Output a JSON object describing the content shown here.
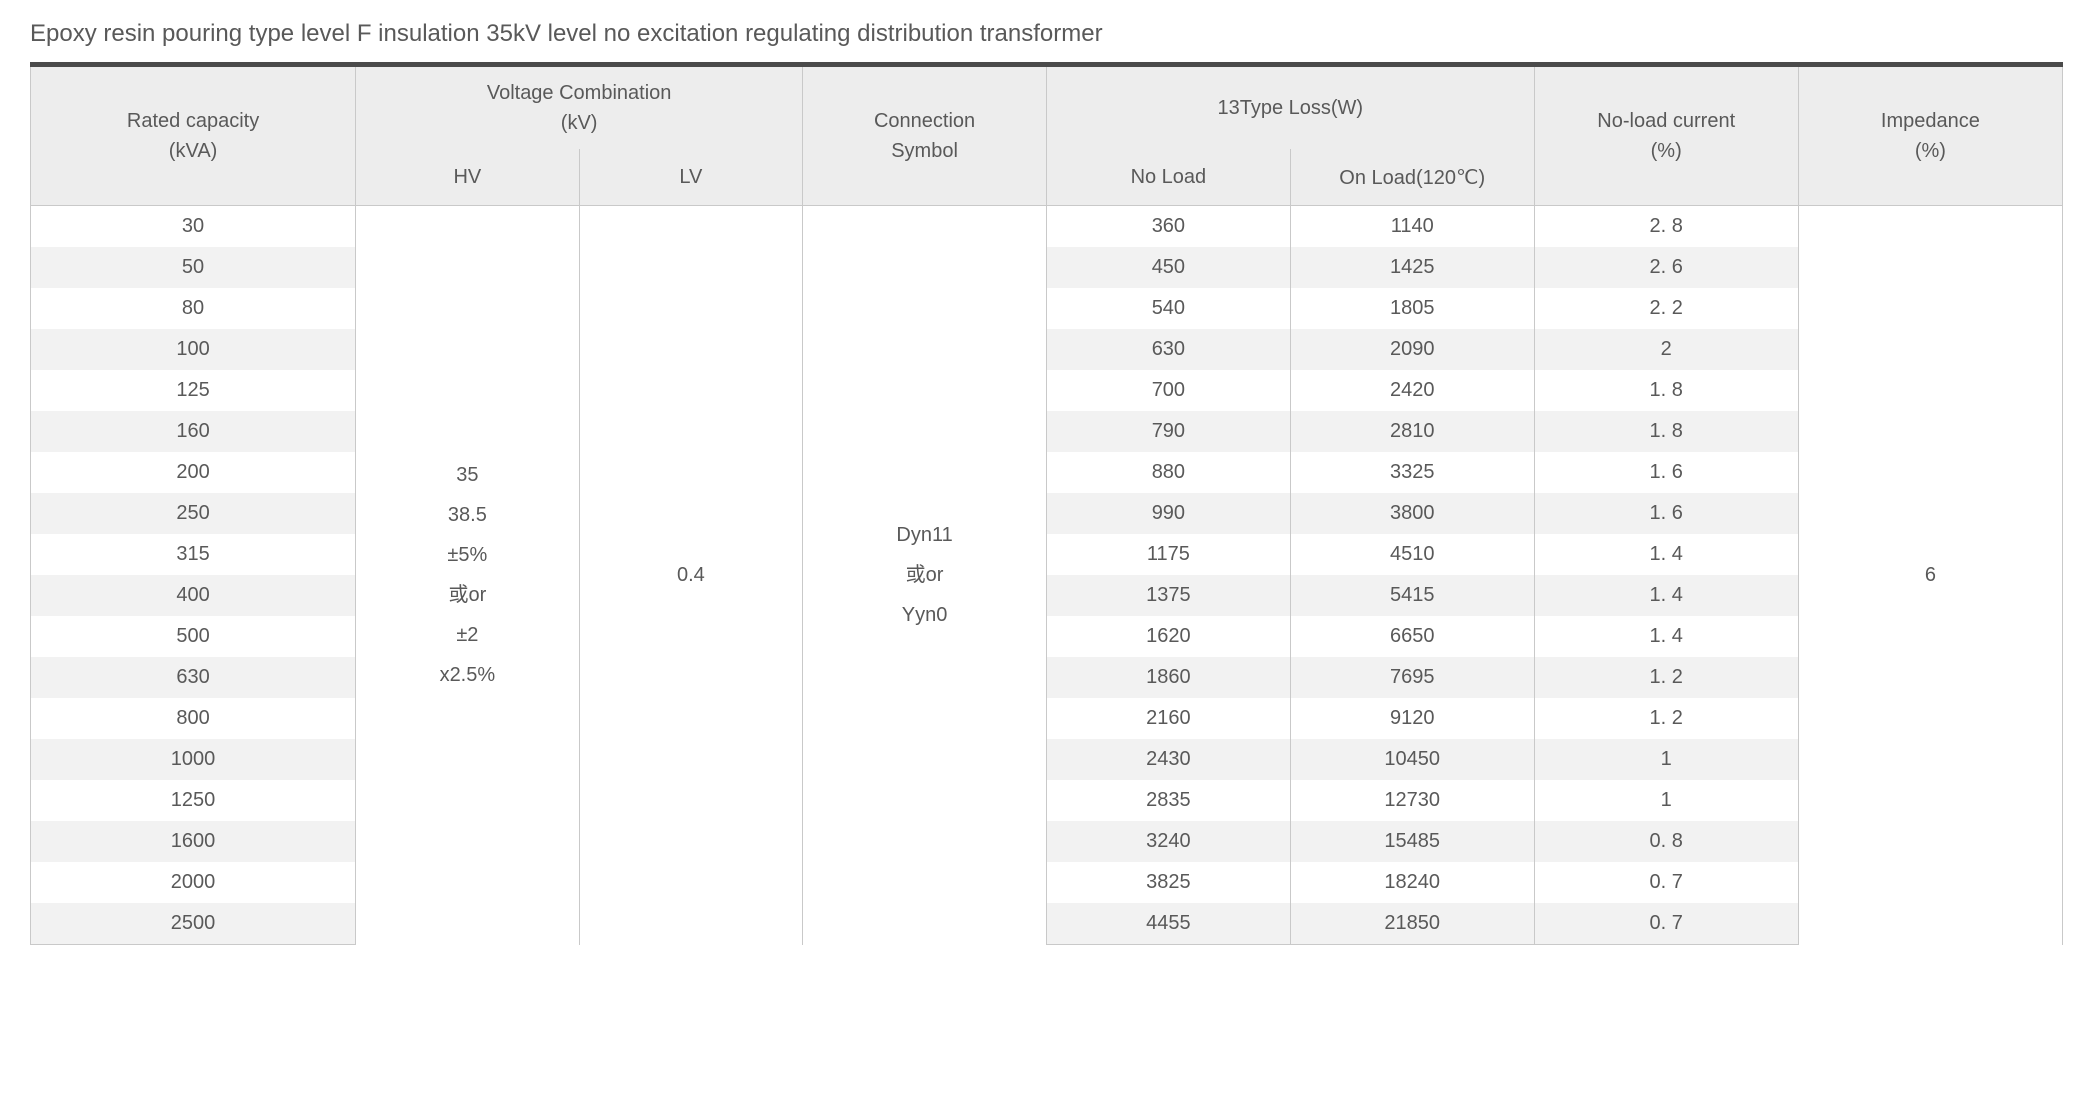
{
  "title": "Epoxy resin pouring type level F insulation 35kV level no excitation regulating distribution transformer",
  "table": {
    "type": "table",
    "background_color": "#ffffff",
    "header_bg": "#ededed",
    "stripe_bg": "#f2f2f2",
    "border_color": "#c9c9c9",
    "topbar_color": "#4a4a4a",
    "text_color": "#595959",
    "font_size_pt": 15,
    "columns": [
      {
        "id": "capacity",
        "header_line1": "Rated capacity",
        "header_line2": "(kVA)",
        "rowspan": 2
      },
      {
        "id": "voltage",
        "header_line1": "Voltage Combination",
        "header_line2": "(kV)",
        "colspan": 2,
        "sub": [
          {
            "id": "hv",
            "label": "HV"
          },
          {
            "id": "lv",
            "label": "LV"
          }
        ]
      },
      {
        "id": "connection",
        "header_line1": "Connection",
        "header_line2": "Symbol",
        "rowspan": 2
      },
      {
        "id": "loss",
        "header_line1": "13Type Loss(W)",
        "colspan": 2,
        "sub": [
          {
            "id": "noload",
            "label": "No Load"
          },
          {
            "id": "onload",
            "label": "On Load(120℃)"
          }
        ]
      },
      {
        "id": "nlc",
        "header_line1": "No-load current",
        "header_line2": "(%)",
        "rowspan": 2
      },
      {
        "id": "impedance",
        "header_line1": "Impedance",
        "header_line2": "(%)",
        "rowspan": 2
      }
    ],
    "merged": {
      "hv": "35\n38.5\n±5%\n或or\n±2\nx2.5%",
      "lv": "0.4",
      "connection": "Dyn11\n或or\nYyn0",
      "impedance": "6"
    },
    "rows": [
      {
        "capacity": "30",
        "noload": "360",
        "onload": "1140",
        "nlc": "2. 8"
      },
      {
        "capacity": "50",
        "noload": "450",
        "onload": "1425",
        "nlc": "2. 6"
      },
      {
        "capacity": "80",
        "noload": "540",
        "onload": "1805",
        "nlc": "2. 2"
      },
      {
        "capacity": "100",
        "noload": "630",
        "onload": "2090",
        "nlc": "2"
      },
      {
        "capacity": "125",
        "noload": "700",
        "onload": "2420",
        "nlc": "1. 8"
      },
      {
        "capacity": "160",
        "noload": "790",
        "onload": "2810",
        "nlc": "1. 8"
      },
      {
        "capacity": "200",
        "noload": "880",
        "onload": "3325",
        "nlc": "1. 6"
      },
      {
        "capacity": "250",
        "noload": "990",
        "onload": "3800",
        "nlc": "1. 6"
      },
      {
        "capacity": "315",
        "noload": "1175",
        "onload": "4510",
        "nlc": "1. 4"
      },
      {
        "capacity": "400",
        "noload": "1375",
        "onload": "5415",
        "nlc": "1. 4"
      },
      {
        "capacity": "500",
        "noload": "1620",
        "onload": "6650",
        "nlc": "1. 4"
      },
      {
        "capacity": "630",
        "noload": "1860",
        "onload": "7695",
        "nlc": "1. 2"
      },
      {
        "capacity": "800",
        "noload": "2160",
        "onload": "9120",
        "nlc": "1. 2"
      },
      {
        "capacity": "1000",
        "noload": "2430",
        "onload": "10450",
        "nlc": "1"
      },
      {
        "capacity": "1250",
        "noload": "2835",
        "onload": "12730",
        "nlc": "1"
      },
      {
        "capacity": "1600",
        "noload": "3240",
        "onload": "15485",
        "nlc": "0. 8"
      },
      {
        "capacity": "2000",
        "noload": "3825",
        "onload": "18240",
        "nlc": "0. 7"
      },
      {
        "capacity": "2500",
        "noload": "4455",
        "onload": "21850",
        "nlc": "0. 7"
      }
    ]
  }
}
